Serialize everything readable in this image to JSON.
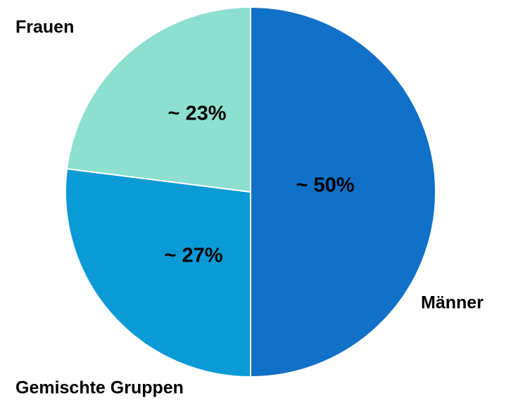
{
  "chart_data": {
    "type": "pie",
    "categories": [
      "Männer",
      "Gemischte Gruppen",
      "Frauen"
    ],
    "values": [
      50,
      27,
      23
    ],
    "value_labels": [
      "~ 50%",
      "~ 27%",
      "~ 23%"
    ],
    "colors": [
      "#1170c8",
      "#0a9ad6",
      "#8ddfd0"
    ]
  }
}
